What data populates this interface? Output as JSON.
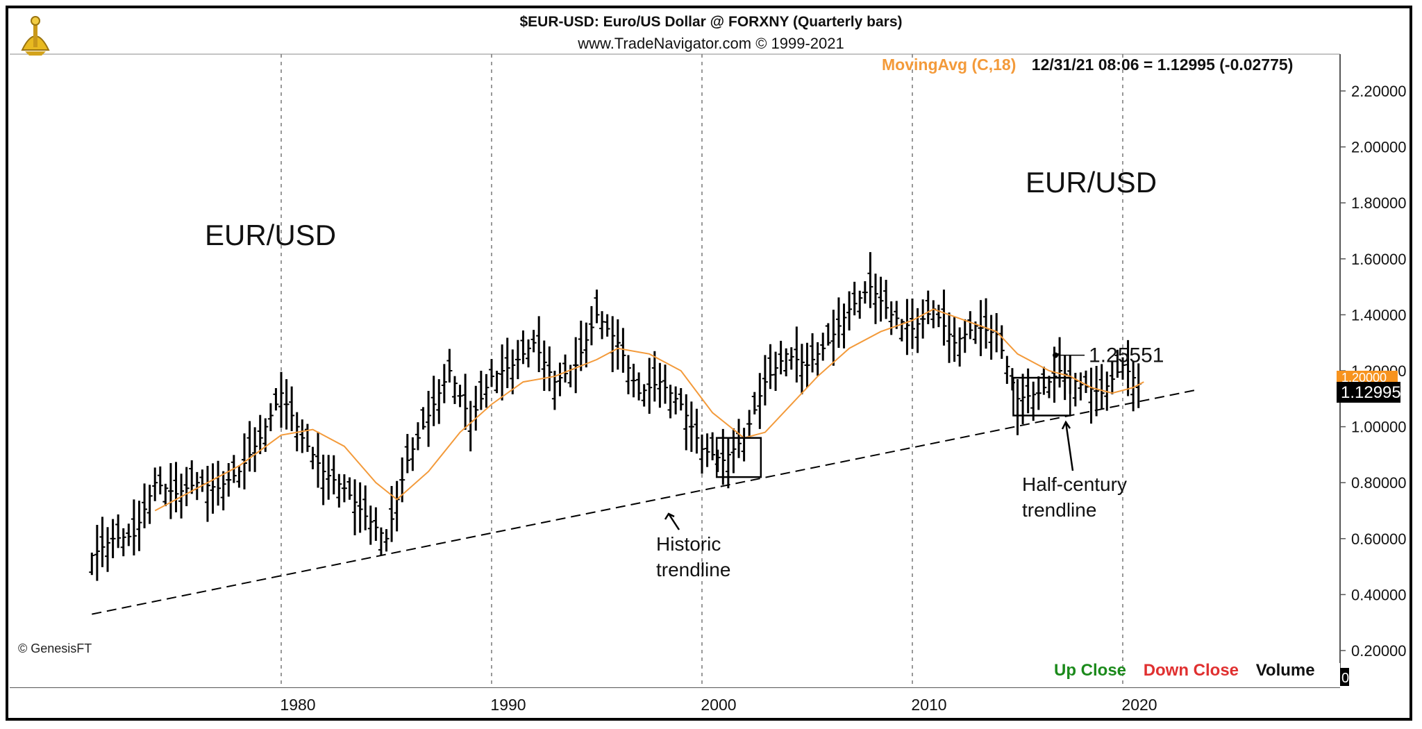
{
  "header": {
    "title": "$EUR-USD:  Euro/US Dollar @ FORXNY  (Quarterly bars)",
    "subtitle": "www.TradeNavigator.com © 1999-2021"
  },
  "status": {
    "indicator": "MovingAvg (C,18)",
    "readout": "12/31/21 08:06 = 1.12995 (-0.02775)"
  },
  "footer": {
    "copyright": "© GenesisFT",
    "legend_up": "Up Close",
    "legend_down": "Down Close",
    "legend_volume": "Volume",
    "volume_value": "0"
  },
  "colors": {
    "up_close": "#1b8a1b",
    "down_close": "#e03030",
    "moving_avg": "#f39a3a",
    "price_tag_bg": "#000000",
    "price_tag_fg": "#ffffff",
    "bars": "#000000"
  },
  "icons": {
    "logo": "sextant-logo-icon"
  },
  "chart_data": {
    "type": "line",
    "x_ticks": [
      "1980",
      "1990",
      "2000",
      "2010",
      "2020"
    ],
    "y_ticks": [
      "0.20000",
      "0.40000",
      "0.60000",
      "0.80000",
      "1.00000",
      "1.20000",
      "1.40000",
      "1.60000",
      "1.80000",
      "2.00000",
      "2.20000"
    ],
    "xlim": [
      1968.8,
      2021.8
    ],
    "ylim": [
      0.17,
      2.33
    ],
    "grid": "vertical dashed at decades",
    "annotations": {
      "label_left": "EUR/USD",
      "label_right": "EUR/USD",
      "historic": [
        "Historic",
        "trendline"
      ],
      "half_century": [
        "Half-century",
        "trendline"
      ],
      "peak_label": "1.25551",
      "last_price": "1.12995",
      "orange_tag": "1.20000"
    },
    "trendline": {
      "x": [
        1971.0,
        2023.4
      ],
      "y": [
        0.33,
        1.13
      ]
    },
    "breakout_box": {
      "x": [
        2014.8,
        2017.5
      ],
      "y": [
        1.04,
        1.175
      ]
    },
    "bottom_box": {
      "x": [
        2000.7,
        2002.8
      ],
      "y": [
        0.82,
        0.96
      ]
    },
    "price_x": [
      1971.0,
      1972.0,
      1973.0,
      1974.0,
      1975.0,
      1976.0,
      1977.0,
      1978.0,
      1979.0,
      1980.0,
      1981.0,
      1982.0,
      1983.0,
      1984.0,
      1985.0,
      1986.0,
      1987.0,
      1988.0,
      1989.0,
      1990.0,
      1991.0,
      1992.0,
      1993.0,
      1994.0,
      1995.0,
      1996.0,
      1997.0,
      1998.0,
      1999.0,
      2000.0,
      2001.0,
      2002.0,
      2003.0,
      2004.0,
      2005.0,
      2006.0,
      2007.0,
      2008.0,
      2009.0,
      2010.0,
      2011.0,
      2012.0,
      2013.0,
      2014.0,
      2015.0,
      2016.0,
      2017.0,
      2018.0,
      2019.0,
      2020.0,
      2021.0
    ],
    "price_y": [
      0.54,
      0.6,
      0.61,
      0.8,
      0.76,
      0.8,
      0.78,
      0.84,
      0.96,
      1.12,
      0.96,
      0.84,
      0.78,
      0.68,
      0.6,
      0.88,
      1.04,
      1.2,
      1.02,
      1.18,
      1.22,
      1.3,
      1.16,
      1.22,
      1.4,
      1.3,
      1.12,
      1.16,
      1.08,
      0.92,
      0.88,
      0.96,
      1.16,
      1.26,
      1.22,
      1.3,
      1.42,
      1.5,
      1.4,
      1.35,
      1.42,
      1.3,
      1.36,
      1.33,
      1.1,
      1.12,
      1.2,
      1.15,
      1.12,
      1.22,
      1.13
    ],
    "ma_x": [
      1974.0,
      1976.0,
      1978.0,
      1980.0,
      1981.5,
      1983.0,
      1984.5,
      1985.5,
      1987.0,
      1988.5,
      1990.0,
      1991.5,
      1993.0,
      1995.0,
      1996.0,
      1997.5,
      1999.0,
      2000.5,
      2002.0,
      2003.0,
      2004.0,
      2005.5,
      2007.0,
      2008.5,
      2010.0,
      2011.0,
      2012.5,
      2014.0,
      2015.0,
      2016.5,
      2017.5,
      2018.5,
      2019.5,
      2020.5,
      2021.0
    ],
    "ma_y": [
      0.7,
      0.78,
      0.86,
      0.97,
      0.99,
      0.93,
      0.8,
      0.74,
      0.84,
      0.98,
      1.08,
      1.16,
      1.18,
      1.24,
      1.28,
      1.26,
      1.2,
      1.05,
      0.96,
      0.98,
      1.06,
      1.18,
      1.28,
      1.34,
      1.38,
      1.42,
      1.38,
      1.34,
      1.26,
      1.2,
      1.18,
      1.14,
      1.12,
      1.14,
      1.16
    ],
    "peak_marker": {
      "x": 2016.8,
      "y": 1.25551
    }
  }
}
